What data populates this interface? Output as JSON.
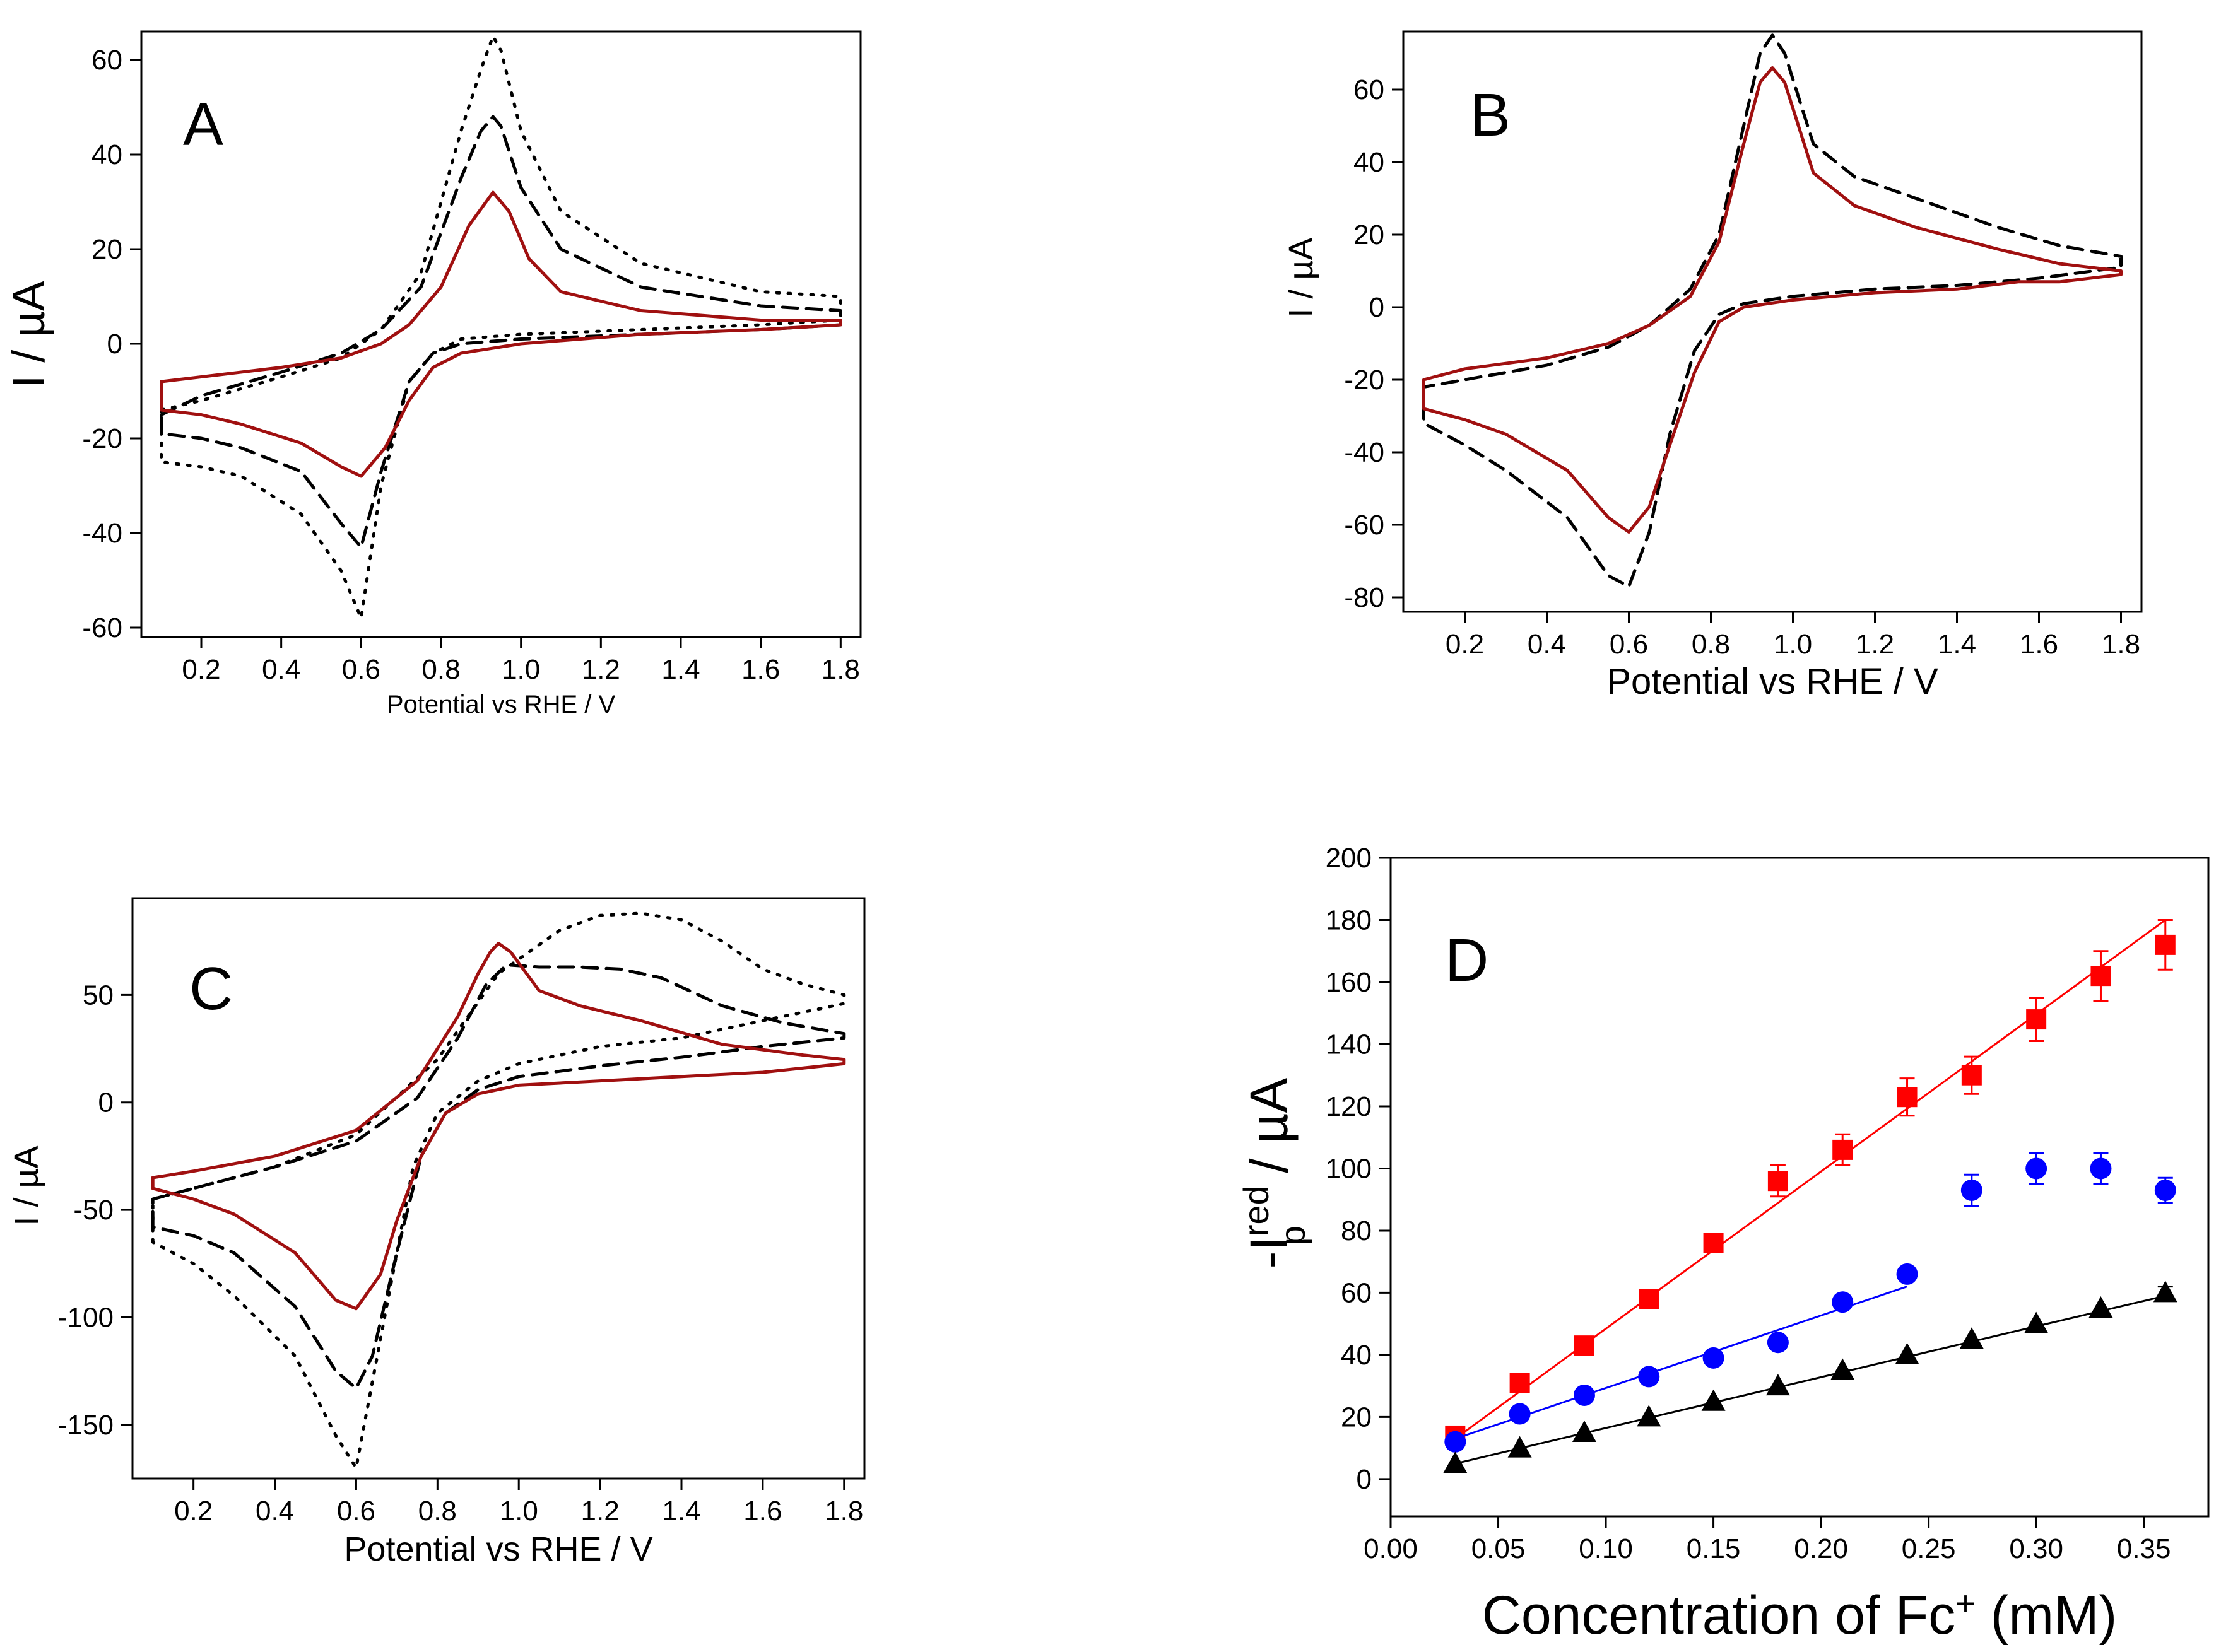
{
  "chart_data": [
    {
      "panel": "A",
      "type": "line",
      "xlabel": "Potential vs RHE / V",
      "ylabel": "I / µA",
      "xlim": [
        0.05,
        1.85
      ],
      "ylim": [
        -62,
        66
      ],
      "xticks": [
        0.2,
        0.4,
        0.6,
        0.8,
        1.0,
        1.2,
        1.4,
        1.6,
        1.8
      ],
      "xtick_labels": [
        "0.2",
        "0.4",
        "0.6",
        "0.8",
        "1.0",
        "1.2",
        "1.4",
        "1.6",
        "1.8"
      ],
      "yticks": [
        -60,
        -40,
        -20,
        0,
        20,
        40,
        60
      ],
      "ytick_labels": [
        "-60",
        "-40",
        "-20",
        "0",
        "20",
        "40",
        "60"
      ],
      "series": [
        {
          "name": "dotted",
          "color": "#000000",
          "dash": "dot",
          "x": [
            0.1,
            0.2,
            0.4,
            0.55,
            0.65,
            0.75,
            0.85,
            0.9,
            0.93,
            0.95,
            1.0,
            1.1,
            1.3,
            1.6,
            1.8,
            1.8,
            1.6,
            1.3,
            1.0,
            0.85,
            0.78,
            0.72,
            0.65,
            0.6,
            0.55,
            0.45,
            0.3,
            0.2,
            0.1,
            0.1
          ],
          "y": [
            -14,
            -12,
            -7,
            -3,
            3,
            15,
            45,
            58,
            65,
            62,
            45,
            28,
            17,
            11,
            10,
            5,
            4,
            3,
            2,
            1,
            -2,
            -8,
            -30,
            -58,
            -48,
            -36,
            -28,
            -26,
            -25,
            -14
          ]
        },
        {
          "name": "dashed",
          "color": "#000000",
          "dash": "dash",
          "x": [
            0.1,
            0.2,
            0.4,
            0.55,
            0.65,
            0.75,
            0.85,
            0.9,
            0.93,
            0.95,
            1.0,
            1.1,
            1.3,
            1.6,
            1.8,
            1.8,
            1.6,
            1.3,
            1.0,
            0.85,
            0.78,
            0.72,
            0.65,
            0.6,
            0.55,
            0.45,
            0.3,
            0.2,
            0.1,
            0.1
          ],
          "y": [
            -15,
            -11,
            -6,
            -2,
            3,
            12,
            35,
            45,
            48,
            46,
            33,
            20,
            12,
            8,
            7,
            4,
            3,
            2,
            1,
            0,
            -2,
            -8,
            -27,
            -43,
            -38,
            -27,
            -22,
            -20,
            -19,
            -15
          ]
        },
        {
          "name": "solid",
          "color": "#a01010",
          "dash": "solid",
          "x": [
            0.1,
            0.1,
            0.2,
            0.4,
            0.55,
            0.65,
            0.72,
            0.8,
            0.87,
            0.93,
            0.97,
            1.02,
            1.1,
            1.3,
            1.6,
            1.8,
            1.8,
            1.6,
            1.3,
            1.0,
            0.85,
            0.78,
            0.72,
            0.66,
            0.6,
            0.55,
            0.45,
            0.3,
            0.2,
            0.1
          ],
          "y": [
            -14,
            -8,
            -7,
            -5,
            -3,
            0,
            4,
            12,
            25,
            32,
            28,
            18,
            11,
            7,
            5,
            5,
            4,
            3,
            2,
            0,
            -2,
            -5,
            -12,
            -22,
            -28,
            -26,
            -21,
            -17,
            -15,
            -14
          ]
        }
      ]
    },
    {
      "panel": "B",
      "type": "line",
      "xlabel": "Potential vs RHE / V",
      "ylabel": "I / µA",
      "xlim": [
        0.05,
        1.85
      ],
      "ylim": [
        -84,
        76
      ],
      "xticks": [
        0.2,
        0.4,
        0.6,
        0.8,
        1.0,
        1.2,
        1.4,
        1.6,
        1.8
      ],
      "xtick_labels": [
        "0.2",
        "0.4",
        "0.6",
        "0.8",
        "1.0",
        "1.2",
        "1.4",
        "1.6",
        "1.8"
      ],
      "yticks": [
        -80,
        -60,
        -40,
        -20,
        0,
        20,
        40,
        60
      ],
      "ytick_labels": [
        "-80",
        "-60",
        "-40",
        "-20",
        "0",
        "20",
        "40",
        "60"
      ],
      "series": [
        {
          "name": "dashed",
          "color": "#000000",
          "dash": "dash",
          "x": [
            0.1,
            0.1,
            0.2,
            0.4,
            0.55,
            0.65,
            0.75,
            0.82,
            0.88,
            0.92,
            0.95,
            0.98,
            1.05,
            1.15,
            1.3,
            1.5,
            1.65,
            1.8,
            1.8,
            1.6,
            1.4,
            1.2,
            1.0,
            0.88,
            0.82,
            0.76,
            0.7,
            0.65,
            0.6,
            0.55,
            0.45,
            0.3,
            0.2,
            0.1
          ],
          "y": [
            -30,
            -22,
            -20,
            -16,
            -11,
            -5,
            5,
            20,
            50,
            70,
            75,
            70,
            45,
            36,
            30,
            22,
            17,
            14,
            11,
            8,
            6,
            5,
            3,
            1,
            -2,
            -12,
            -35,
            -62,
            -77,
            -74,
            -58,
            -45,
            -38,
            -32
          ]
        },
        {
          "name": "solid",
          "color": "#a01010",
          "dash": "solid",
          "x": [
            0.1,
            0.1,
            0.2,
            0.4,
            0.55,
            0.65,
            0.75,
            0.82,
            0.88,
            0.92,
            0.95,
            0.98,
            1.05,
            1.15,
            1.3,
            1.5,
            1.65,
            1.8,
            1.8,
            1.65,
            1.55,
            1.4,
            1.2,
            1.0,
            0.88,
            0.82,
            0.76,
            0.7,
            0.65,
            0.6,
            0.55,
            0.45,
            0.3,
            0.2,
            0.1
          ],
          "y": [
            -27,
            -20,
            -17,
            -14,
            -10,
            -5,
            3,
            18,
            45,
            62,
            66,
            62,
            37,
            28,
            22,
            16,
            12,
            10,
            9,
            7,
            7,
            5,
            4,
            2,
            0,
            -4,
            -18,
            -38,
            -55,
            -62,
            -58,
            -45,
            -35,
            -31,
            -28
          ]
        }
      ]
    },
    {
      "panel": "C",
      "type": "line",
      "xlabel": "Potential vs RHE / V",
      "ylabel": "I / µA",
      "xlim": [
        0.05,
        1.85
      ],
      "ylim": [
        -175,
        95
      ],
      "xticks": [
        0.2,
        0.4,
        0.6,
        0.8,
        1.0,
        1.2,
        1.4,
        1.6,
        1.8
      ],
      "xtick_labels": [
        "0.2",
        "0.4",
        "0.6",
        "0.8",
        "1.0",
        "1.2",
        "1.4",
        "1.6",
        "1.8"
      ],
      "yticks": [
        -150,
        -100,
        -50,
        0,
        50
      ],
      "ytick_labels": [
        "-150",
        "-100",
        "-50",
        "0",
        "50"
      ],
      "series": [
        {
          "name": "dotted",
          "color": "#000000",
          "dash": "dot",
          "x": [
            0.1,
            0.1,
            0.2,
            0.4,
            0.6,
            0.8,
            0.95,
            1.1,
            1.2,
            1.3,
            1.4,
            1.5,
            1.6,
            1.7,
            1.8,
            1.8,
            1.6,
            1.4,
            1.2,
            1.0,
            0.9,
            0.8,
            0.74,
            0.68,
            0.62,
            0.6,
            0.55,
            0.45,
            0.3,
            0.2,
            0.1
          ],
          "y": [
            -65,
            -45,
            -40,
            -30,
            -15,
            20,
            60,
            80,
            87,
            88,
            85,
            75,
            62,
            55,
            50,
            46,
            38,
            30,
            26,
            18,
            10,
            -5,
            -30,
            -90,
            -150,
            -170,
            -155,
            -118,
            -90,
            -75,
            -65
          ]
        },
        {
          "name": "dashed",
          "color": "#000000",
          "dash": "dash",
          "x": [
            0.1,
            0.1,
            0.2,
            0.4,
            0.6,
            0.75,
            0.85,
            0.92,
            0.97,
            1.05,
            1.15,
            1.25,
            1.35,
            1.5,
            1.65,
            1.8,
            1.8,
            1.6,
            1.4,
            1.2,
            1.0,
            0.9,
            0.82,
            0.76,
            0.7,
            0.64,
            0.6,
            0.55,
            0.45,
            0.3,
            0.2,
            0.1
          ],
          "y": [
            -58,
            -45,
            -40,
            -30,
            -18,
            2,
            30,
            55,
            64,
            63,
            63,
            62,
            58,
            45,
            37,
            32,
            30,
            26,
            21,
            17,
            12,
            6,
            -5,
            -25,
            -70,
            -118,
            -133,
            -125,
            -95,
            -70,
            -62,
            -58
          ]
        },
        {
          "name": "solid",
          "color": "#a01010",
          "dash": "solid",
          "x": [
            0.1,
            0.1,
            0.2,
            0.4,
            0.6,
            0.75,
            0.85,
            0.9,
            0.93,
            0.95,
            0.98,
            1.05,
            1.15,
            1.3,
            1.5,
            1.7,
            1.8,
            1.8,
            1.6,
            1.4,
            1.2,
            1.0,
            0.9,
            0.82,
            0.76,
            0.7,
            0.66,
            0.6,
            0.55,
            0.45,
            0.3,
            0.2,
            0.1
          ],
          "y": [
            -40,
            -35,
            -32,
            -25,
            -13,
            10,
            40,
            60,
            70,
            74,
            70,
            52,
            45,
            38,
            27,
            22,
            20,
            18,
            14,
            12,
            10,
            8,
            4,
            -5,
            -25,
            -55,
            -80,
            -96,
            -92,
            -70,
            -52,
            -45,
            -40
          ]
        }
      ]
    },
    {
      "panel": "D",
      "type": "scatter",
      "xlabel": "Concentration of Fc+ (mM)",
      "xlabel_main": "Concentration of Fc",
      "xlabel_sup": "+",
      "xlabel_tail": " (mM)",
      "ylabel": "-Ip red / µA",
      "ylabel_main": "-I",
      "ylabel_sup": "red",
      "ylabel_sub": "p",
      "ylabel_tail": " / µA",
      "xlim": [
        0.0,
        0.38
      ],
      "ylim": [
        -12,
        200
      ],
      "xticks": [
        0.0,
        0.05,
        0.1,
        0.15,
        0.2,
        0.25,
        0.3,
        0.35
      ],
      "xtick_labels": [
        "0.00",
        "0.05",
        "0.10",
        "0.15",
        "0.20",
        "0.25",
        "0.30",
        "0.35"
      ],
      "yticks": [
        0,
        20,
        40,
        60,
        80,
        100,
        120,
        140,
        160,
        180,
        200
      ],
      "ytick_labels": [
        "0",
        "20",
        "40",
        "60",
        "80",
        "100",
        "120",
        "140",
        "160",
        "180",
        "200"
      ],
      "series": [
        {
          "name": "red squares",
          "color": "#ff0000",
          "marker": "square",
          "x": [
            0.03,
            0.06,
            0.09,
            0.12,
            0.15,
            0.18,
            0.21,
            0.24,
            0.27,
            0.3,
            0.33,
            0.36
          ],
          "y": [
            14,
            31,
            43,
            58,
            76,
            96,
            106,
            123,
            130,
            148,
            162,
            172
          ],
          "err": [
            0,
            2,
            0,
            0,
            3,
            5,
            5,
            6,
            6,
            7,
            8,
            8
          ],
          "fit": {
            "x": [
              0.03,
              0.36
            ],
            "y": [
              13,
              180
            ]
          }
        },
        {
          "name": "blue circles",
          "color": "#0000ff",
          "marker": "circle",
          "x": [
            0.03,
            0.06,
            0.09,
            0.12,
            0.15,
            0.18,
            0.21,
            0.24,
            0.27,
            0.3,
            0.33,
            0.36
          ],
          "y": [
            12,
            21,
            27,
            33,
            39,
            44,
            57,
            66,
            93,
            100,
            100,
            93
          ],
          "err": [
            0,
            0,
            0,
            0,
            0,
            0,
            0,
            0,
            5,
            5,
            5,
            4
          ],
          "fit": {
            "x": [
              0.03,
              0.24
            ],
            "y": [
              13,
              62
            ]
          }
        },
        {
          "name": "black triangles",
          "color": "#000000",
          "marker": "triangle",
          "x": [
            0.03,
            0.06,
            0.09,
            0.12,
            0.15,
            0.18,
            0.21,
            0.24,
            0.27,
            0.3,
            0.33,
            0.36
          ],
          "y": [
            5,
            10,
            15,
            20,
            25,
            30,
            35,
            40,
            45,
            50,
            55,
            60
          ],
          "err": [
            0,
            0,
            0,
            0,
            0,
            0,
            0,
            0,
            0,
            0,
            0,
            2
          ],
          "fit": {
            "x": [
              0.03,
              0.36
            ],
            "y": [
              5,
              59
            ]
          }
        }
      ]
    }
  ]
}
